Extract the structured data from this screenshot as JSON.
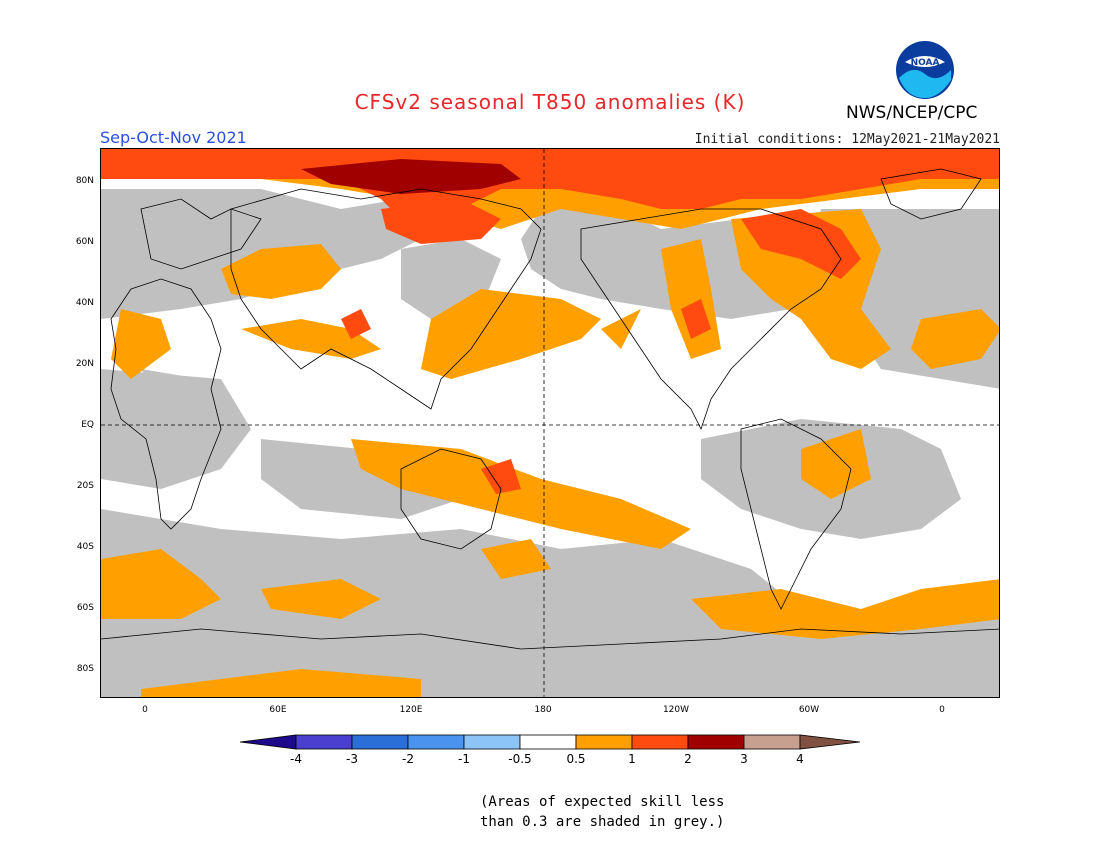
{
  "title": "CFSv2 seasonal T850 anomalies (K)",
  "season": "Sep-Oct-Nov 2021",
  "initial_conditions": "Initial conditions: 12May2021-21May2021",
  "agency": "NWS/NCEP/CPC",
  "logo": {
    "text": "NOAA",
    "icon": "noaa-logo"
  },
  "lat_labels": [
    "80N",
    "60N",
    "40N",
    "20N",
    "EQ",
    "20S",
    "40S",
    "60S",
    "80S"
  ],
  "lon_labels": [
    "0",
    "60E",
    "120E",
    "180",
    "120W",
    "60W",
    "0"
  ],
  "colorbar": {
    "colors": [
      "#1c0a8a",
      "#4b3fd0",
      "#2a6fd8",
      "#4a94f0",
      "#8cc4f8",
      "#ffffff",
      "#ffa000",
      "#ff4a10",
      "#a00000",
      "#c8a090",
      "#805040"
    ],
    "labels": [
      "-4",
      "-3",
      "-2",
      "-1",
      "-0.5",
      "0.5",
      "1",
      "2",
      "3",
      "4"
    ]
  },
  "note": [
    "(Areas of expected skill less",
    "than 0.3 are shaded in grey.)"
  ],
  "colors": {
    "skill_grey": "#c0c0c0",
    "weak_warm": "#ffa000",
    "warm": "#ff4a10",
    "hot": "#a00000"
  }
}
